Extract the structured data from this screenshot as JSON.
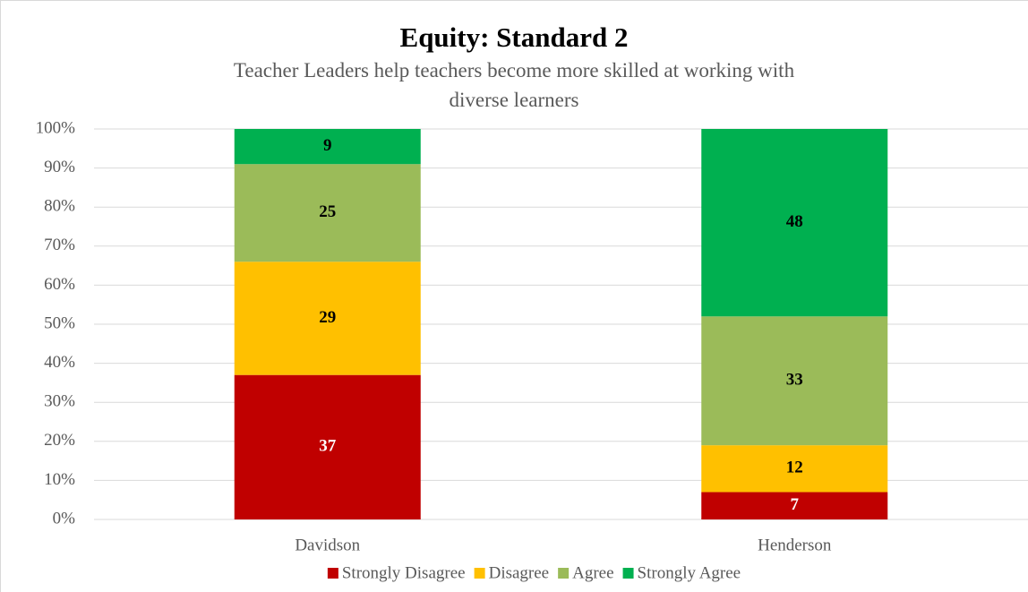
{
  "chart_data": {
    "type": "stacked_bar",
    "title": "Equity: Standard 2",
    "subtitle": "Teacher Leaders help teachers become more skilled at working with diverse learners",
    "categories": [
      "Davidson",
      "Henderson"
    ],
    "series": [
      {
        "name": "Strongly Disagree",
        "color": "#c00000",
        "label_color": "#ffffff",
        "values": [
          37,
          7
        ]
      },
      {
        "name": "Disagree",
        "color": "#ffc000",
        "label_color": "#000000",
        "values": [
          29,
          12
        ]
      },
      {
        "name": "Agree",
        "color": "#9bbb59",
        "label_color": "#000000",
        "values": [
          25,
          33
        ]
      },
      {
        "name": "Strongly Agree",
        "color": "#00b050",
        "label_color": "#000000",
        "values": [
          9,
          48
        ]
      }
    ],
    "ylim": [
      0,
      100
    ],
    "yticks": [
      {
        "value": 0,
        "label": "0%"
      },
      {
        "value": 10,
        "label": "10%"
      },
      {
        "value": 20,
        "label": "20%"
      },
      {
        "value": 30,
        "label": "30%"
      },
      {
        "value": 40,
        "label": "40%"
      },
      {
        "value": 50,
        "label": "50%"
      },
      {
        "value": 60,
        "label": "60%"
      },
      {
        "value": 70,
        "label": "70%"
      },
      {
        "value": 80,
        "label": "80%"
      },
      {
        "value": 90,
        "label": "90%"
      },
      {
        "value": 100,
        "label": "100%"
      }
    ],
    "grid": true,
    "legend": "bottom"
  }
}
